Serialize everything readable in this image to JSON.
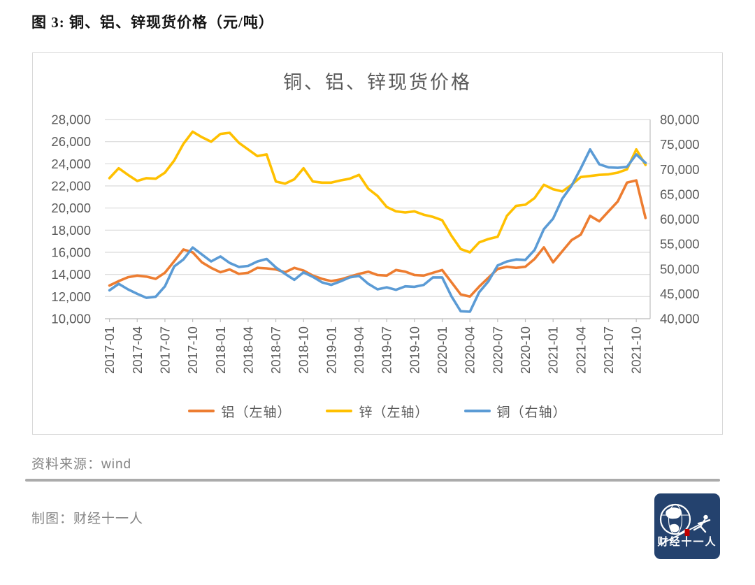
{
  "header": {
    "caption": "图 3: 铜、铝、锌现货价格（元/吨）"
  },
  "chart_data": {
    "type": "line",
    "title": "铜、铝、锌现货价格",
    "n_points": 59,
    "x_start": "2017-01",
    "x_end": "2021-11",
    "x_tick_every": 3,
    "x_tick_labels": [
      "2017-01",
      "2017-04",
      "2017-07",
      "2017-10",
      "2018-01",
      "2018-04",
      "2018-07",
      "2018-10",
      "2019-01",
      "2019-04",
      "2019-07",
      "2019-10",
      "2020-01",
      "2020-04",
      "2020-07",
      "2020-10",
      "2021-01",
      "2021-04",
      "2021-07",
      "2021-10"
    ],
    "axes": {
      "left": {
        "min": 10000,
        "max": 28000,
        "step": 2000,
        "tick_labels": [
          "28,000",
          "26,000",
          "24,000",
          "22,000",
          "20,000",
          "18,000",
          "16,000",
          "14,000",
          "12,000",
          "10,000"
        ]
      },
      "right": {
        "min": 40000,
        "max": 80000,
        "step": 5000,
        "tick_labels": [
          "80,000",
          "75,000",
          "70,000",
          "65,000",
          "60,000",
          "55,000",
          "50,000",
          "45,000",
          "40,000"
        ]
      }
    },
    "grid": "horizontal",
    "legend_position": "bottom",
    "grid_color": "#D9D9D9",
    "axis_color": "#BFBFBF",
    "series": [
      {
        "id": "aluminum",
        "name": "铝（左轴）",
        "axis": "left",
        "color": "#ED7D31",
        "values": [
          13000,
          13400,
          13750,
          13900,
          13800,
          13600,
          14150,
          15200,
          16250,
          16000,
          15100,
          14600,
          14200,
          14450,
          14050,
          14150,
          14600,
          14550,
          14450,
          14200,
          14600,
          14350,
          13900,
          13600,
          13400,
          13550,
          13800,
          14050,
          14250,
          13950,
          13900,
          14400,
          14250,
          13950,
          13900,
          14150,
          14400,
          13300,
          12200,
          12000,
          12900,
          13700,
          14500,
          14700,
          14600,
          14700,
          15400,
          16450,
          15100,
          16100,
          17100,
          17600,
          19300,
          18800,
          19700,
          20600,
          22300,
          22500,
          19100
        ]
      },
      {
        "id": "zinc",
        "name": "锌（左轴）",
        "axis": "left",
        "color": "#FFC000",
        "values": [
          22700,
          23600,
          23000,
          22450,
          22700,
          22650,
          23200,
          24300,
          25800,
          26900,
          26400,
          26000,
          26700,
          26800,
          25900,
          25300,
          24700,
          24850,
          22400,
          22200,
          22600,
          23600,
          22400,
          22300,
          22300,
          22500,
          22650,
          23000,
          21750,
          21100,
          20100,
          19700,
          19600,
          19700,
          19400,
          19200,
          18900,
          17500,
          16300,
          16000,
          16900,
          17200,
          17400,
          19300,
          20200,
          20300,
          20900,
          22100,
          21700,
          21500,
          22100,
          22800,
          22900,
          23000,
          23050,
          23200,
          23500,
          25300,
          23900
        ]
      },
      {
        "id": "copper",
        "name": "铜（右轴）",
        "axis": "right",
        "color": "#5B9BD5",
        "values": [
          45700,
          47000,
          45900,
          45000,
          44200,
          44400,
          46500,
          50500,
          51900,
          54300,
          52900,
          51500,
          52500,
          51200,
          50400,
          50600,
          51500,
          52000,
          50300,
          49000,
          47800,
          49300,
          48400,
          47300,
          46800,
          47500,
          48300,
          48600,
          47000,
          45900,
          46300,
          45800,
          46500,
          46400,
          46800,
          48300,
          48300,
          44500,
          41500,
          41400,
          45300,
          47500,
          50700,
          51500,
          51900,
          51800,
          53800,
          58000,
          60100,
          64100,
          66700,
          70200,
          74000,
          71000,
          70400,
          70300,
          70500,
          73000,
          71300
        ]
      }
    ]
  },
  "footer": {
    "source": "资料来源：wind",
    "credit": "制图：财经十一人"
  },
  "logo": {
    "text": "财经十一人",
    "bg_color": "#24426E",
    "seal_color": "#C00000"
  }
}
